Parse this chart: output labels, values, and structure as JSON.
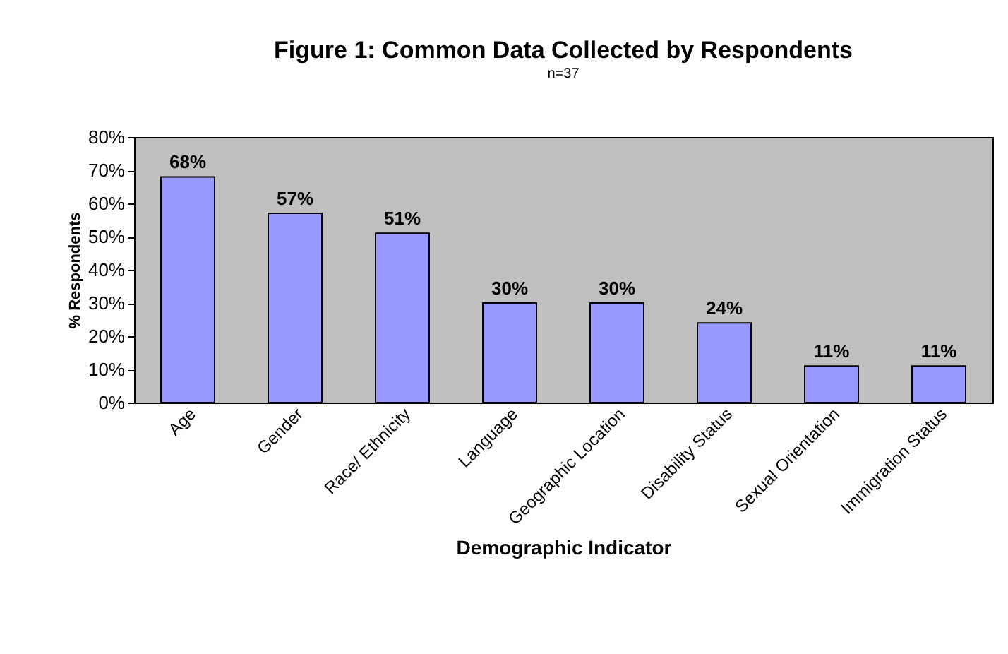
{
  "chart_data": {
    "type": "bar",
    "title": "Figure 1: Common Data Collected by Respondents",
    "subtitle": "n=37",
    "xlabel": "Demographic Indicator",
    "ylabel": "% Respondents",
    "categories": [
      "Age",
      "Gender",
      "Race/ Ethnicity",
      "Language",
      "Geographic Location",
      "Disability Status",
      "Sexual Orientation",
      "Immigration Status"
    ],
    "values": [
      68,
      57,
      51,
      30,
      30,
      24,
      11,
      11
    ],
    "value_labels": [
      "68%",
      "57%",
      "51%",
      "30%",
      "30%",
      "24%",
      "11%",
      "11%"
    ],
    "color": "#9999ff",
    "ylim": [
      0,
      80
    ],
    "yticks": [
      {
        "value": 0,
        "label": "0%"
      },
      {
        "value": 10,
        "label": "10%"
      },
      {
        "value": 20,
        "label": "20%"
      },
      {
        "value": 30,
        "label": "30%"
      },
      {
        "value": 40,
        "label": "40%"
      },
      {
        "value": 50,
        "label": "50%"
      },
      {
        "value": 60,
        "label": "60%"
      },
      {
        "value": 70,
        "label": "70%"
      },
      {
        "value": 80,
        "label": "80%"
      }
    ],
    "grid": false
  }
}
